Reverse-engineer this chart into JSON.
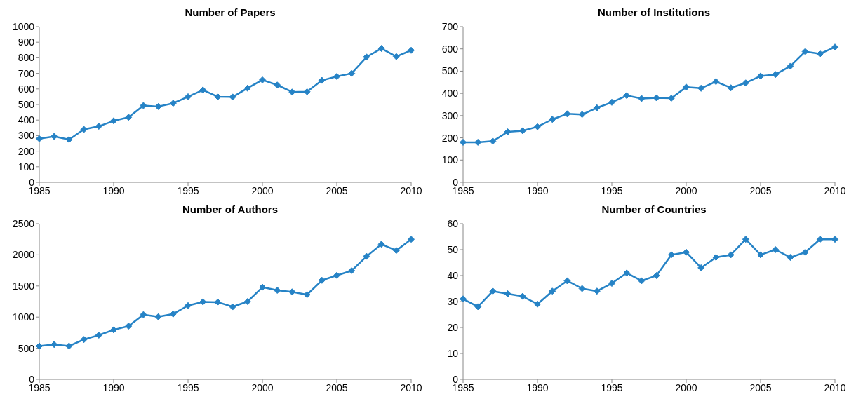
{
  "chart_data": [
    {
      "type": "line",
      "title": "Number of Papers",
      "x": [
        1985,
        1986,
        1987,
        1988,
        1989,
        1990,
        1991,
        1992,
        1993,
        1994,
        1995,
        1996,
        1997,
        1998,
        1999,
        2000,
        2001,
        2002,
        2003,
        2004,
        2005,
        2006,
        2007,
        2008,
        2009,
        2010
      ],
      "series": [
        {
          "color": "#2683c6",
          "values": [
            280,
            295,
            275,
            340,
            360,
            395,
            418,
            493,
            487,
            508,
            550,
            593,
            550,
            548,
            605,
            658,
            625,
            580,
            582,
            655,
            680,
            700,
            805,
            860,
            808,
            848
          ]
        }
      ],
      "xlim": [
        1985,
        2010
      ],
      "xticks": [
        1985,
        1990,
        1995,
        2000,
        2005,
        2010
      ],
      "ylim": [
        0,
        1000
      ],
      "yticks": [
        0,
        100,
        200,
        300,
        400,
        500,
        600,
        700,
        800,
        900,
        1000
      ],
      "grid": false,
      "legend": false,
      "marker": "diamond",
      "line_style": "solid"
    },
    {
      "type": "line",
      "title": "Number of Institutions",
      "x": [
        1985,
        1986,
        1987,
        1988,
        1989,
        1990,
        1991,
        1992,
        1993,
        1994,
        1995,
        1996,
        1997,
        1998,
        1999,
        2000,
        2001,
        2002,
        2003,
        2004,
        2005,
        2006,
        2007,
        2008,
        2009,
        2010
      ],
      "series": [
        {
          "color": "#2683c6",
          "values": [
            180,
            180,
            185,
            227,
            232,
            250,
            283,
            308,
            305,
            335,
            360,
            390,
            377,
            380,
            378,
            428,
            423,
            453,
            425,
            447,
            478,
            485,
            522,
            588,
            578,
            608
          ]
        }
      ],
      "xlim": [
        1985,
        2010
      ],
      "xticks": [
        1985,
        1990,
        1995,
        2000,
        2005,
        2010
      ],
      "ylim": [
        0,
        700
      ],
      "yticks": [
        0,
        100,
        200,
        300,
        400,
        500,
        600,
        700
      ],
      "grid": false,
      "legend": false,
      "marker": "diamond",
      "line_style": "solid"
    },
    {
      "type": "line",
      "title": "Number of Authors",
      "x": [
        1985,
        1986,
        1987,
        1988,
        1989,
        1990,
        1991,
        1992,
        1993,
        1994,
        1995,
        1996,
        1997,
        1998,
        1999,
        2000,
        2001,
        2002,
        2003,
        2004,
        2005,
        2006,
        2007,
        2008,
        2009,
        2010
      ],
      "series": [
        {
          "color": "#2683c6",
          "values": [
            535,
            560,
            535,
            640,
            710,
            795,
            855,
            1040,
            1005,
            1050,
            1185,
            1245,
            1240,
            1165,
            1250,
            1480,
            1430,
            1405,
            1360,
            1590,
            1670,
            1745,
            1975,
            2170,
            2070,
            2250
          ]
        }
      ],
      "xlim": [
        1985,
        2010
      ],
      "xticks": [
        1985,
        1990,
        1995,
        2000,
        2005,
        2010
      ],
      "ylim": [
        0,
        2500
      ],
      "yticks": [
        0,
        500,
        1000,
        1500,
        2000,
        2500
      ],
      "grid": false,
      "legend": false,
      "marker": "diamond",
      "line_style": "solid"
    },
    {
      "type": "line",
      "title": "Number of Countries",
      "x": [
        1985,
        1986,
        1987,
        1988,
        1989,
        1990,
        1991,
        1992,
        1993,
        1994,
        1995,
        1996,
        1997,
        1998,
        1999,
        2000,
        2001,
        2002,
        2003,
        2004,
        2005,
        2006,
        2007,
        2008,
        2009,
        2010
      ],
      "series": [
        {
          "color": "#2683c6",
          "values": [
            31,
            28,
            34,
            33,
            32,
            29,
            34,
            38,
            35,
            34,
            37,
            41,
            38,
            40,
            48,
            49,
            43,
            47,
            48,
            54,
            48,
            50,
            47,
            49,
            54,
            54
          ]
        }
      ],
      "xlim": [
        1985,
        2010
      ],
      "xticks": [
        1985,
        1990,
        1995,
        2000,
        2005,
        2010
      ],
      "ylim": [
        0,
        60
      ],
      "yticks": [
        0,
        10,
        20,
        30,
        40,
        50,
        60
      ],
      "grid": false,
      "legend": false,
      "marker": "diamond",
      "line_style": "solid"
    }
  ]
}
